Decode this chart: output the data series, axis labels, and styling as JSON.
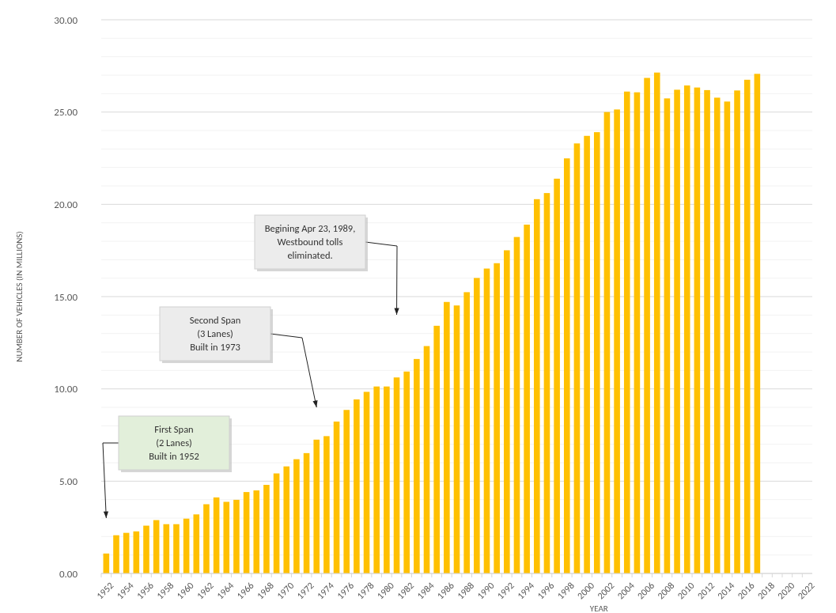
{
  "chart_data": {
    "type": "bar",
    "xlabel": "YEAR",
    "ylabel": "NUMBER OF VEHICLES (IN MILLIONS)",
    "categories": [
      "1952",
      null,
      "1954",
      null,
      "1956",
      null,
      "1958",
      null,
      "1960",
      null,
      "1962",
      null,
      "1964",
      null,
      "1966",
      null,
      "1968",
      null,
      "1970",
      null,
      "1972",
      null,
      "1974",
      null,
      "1976",
      null,
      "1978",
      null,
      "1980",
      null,
      "1982",
      null,
      "1984",
      null,
      "1986",
      null,
      "1988",
      null,
      "1990",
      null,
      "1992",
      null,
      "1994",
      null,
      "1996",
      null,
      "1998",
      null,
      "2000",
      null,
      "2002",
      null,
      "2004",
      null,
      "2006",
      null,
      "2008",
      null,
      "2010",
      null,
      "2012",
      null,
      "2014",
      null,
      "2016",
      null,
      "2018",
      null,
      "2020",
      null,
      "2022"
    ],
    "values": [
      1.08,
      2.07,
      2.2,
      2.28,
      2.59,
      2.89,
      2.67,
      2.67,
      2.97,
      3.2,
      3.75,
      4.12,
      3.88,
      3.99,
      4.41,
      4.5,
      4.8,
      5.42,
      5.8,
      6.19,
      6.52,
      7.25,
      7.44,
      8.23,
      8.86,
      9.43,
      9.84,
      10.13,
      10.13,
      10.62,
      10.94,
      11.62,
      12.32,
      13.42,
      14.71,
      14.52,
      15.24,
      16.01,
      16.52,
      16.81,
      17.51,
      18.23,
      18.9,
      20.28,
      20.61,
      21.39,
      22.49,
      23.3,
      23.71,
      23.91,
      25.0,
      25.14,
      26.11,
      26.07,
      26.85,
      27.14,
      25.74,
      26.21,
      26.44,
      26.33,
      26.19,
      25.78,
      25.57,
      26.17,
      26.75,
      27.07,
      null,
      null,
      null,
      null,
      null
    ],
    "color": "#ffc000",
    "ylim": [
      0,
      30
    ],
    "yticks": [
      {
        "value": 0,
        "label": "0.00"
      },
      {
        "value": 1,
        "label": null
      },
      {
        "value": 2,
        "label": null
      },
      {
        "value": 3,
        "label": null
      },
      {
        "value": 4,
        "label": null
      },
      {
        "value": 5,
        "label": "5.00"
      },
      {
        "value": 6,
        "label": null
      },
      {
        "value": 7,
        "label": null
      },
      {
        "value": 8,
        "label": null
      },
      {
        "value": 9,
        "label": null
      },
      {
        "value": 10,
        "label": "10.00"
      },
      {
        "value": 11,
        "label": null
      },
      {
        "value": 12,
        "label": null
      },
      {
        "value": 13,
        "label": null
      },
      {
        "value": 14,
        "label": null
      },
      {
        "value": 15,
        "label": "15.00"
      },
      {
        "value": 16,
        "label": null
      },
      {
        "value": 17,
        "label": null
      },
      {
        "value": 18,
        "label": null
      },
      {
        "value": 19,
        "label": null
      },
      {
        "value": 20,
        "label": "20.00"
      },
      {
        "value": 21,
        "label": null
      },
      {
        "value": 22,
        "label": null
      },
      {
        "value": 23,
        "label": null
      },
      {
        "value": 24,
        "label": null
      },
      {
        "value": 25,
        "label": "25.00"
      },
      {
        "value": 26,
        "label": null
      },
      {
        "value": 27,
        "label": null
      },
      {
        "value": 28,
        "label": null
      },
      {
        "value": 29,
        "label": null
      },
      {
        "value": 30,
        "label": "30.00"
      }
    ],
    "grid": "y",
    "annotations": [
      "First Span\n(2 Lanes)\nBuilt in 1952",
      "Second Span\n(3 Lanes)\nBuilt in 1973",
      "Begining Apr 23, 1989,\nWestbound tolls\neliminated."
    ]
  }
}
